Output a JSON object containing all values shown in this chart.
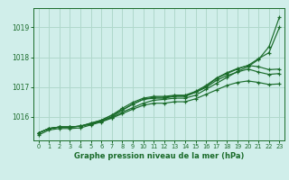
{
  "bg_color": "#d0eeea",
  "grid_color": "#b0d8cc",
  "line_color": "#1a6b2a",
  "title": "Graphe pression niveau de la mer (hPa)",
  "xlim": [
    -0.5,
    23.5
  ],
  "ylim": [
    1015.2,
    1019.65
  ],
  "yticks": [
    1016,
    1017,
    1018,
    1019
  ],
  "xticks": [
    0,
    1,
    2,
    3,
    4,
    5,
    6,
    7,
    8,
    9,
    10,
    11,
    12,
    13,
    14,
    15,
    16,
    17,
    18,
    19,
    20,
    21,
    22,
    23
  ],
  "series": [
    [
      1015.45,
      1015.6,
      1015.65,
      1015.65,
      1015.68,
      1015.75,
      1015.85,
      1015.97,
      1016.15,
      1016.3,
      1016.45,
      1016.55,
      1016.58,
      1016.62,
      1016.62,
      1016.72,
      1016.92,
      1017.12,
      1017.32,
      1017.52,
      1017.68,
      1017.92,
      1018.35,
      1019.35
    ],
    [
      1015.45,
      1015.6,
      1015.65,
      1015.65,
      1015.68,
      1015.75,
      1015.85,
      1016.0,
      1016.22,
      1016.42,
      1016.58,
      1016.65,
      1016.65,
      1016.7,
      1016.7,
      1016.82,
      1017.02,
      1017.28,
      1017.45,
      1017.6,
      1017.72,
      1017.95,
      1018.15,
      1019.0
    ],
    [
      1015.45,
      1015.6,
      1015.65,
      1015.65,
      1015.68,
      1015.78,
      1015.88,
      1016.05,
      1016.28,
      1016.48,
      1016.62,
      1016.68,
      1016.68,
      1016.72,
      1016.72,
      1016.85,
      1017.05,
      1017.3,
      1017.48,
      1017.62,
      1017.72,
      1017.68,
      1017.58,
      1017.6
    ],
    [
      1015.45,
      1015.6,
      1015.65,
      1015.65,
      1015.68,
      1015.78,
      1015.88,
      1016.05,
      1016.22,
      1016.42,
      1016.58,
      1016.62,
      1016.62,
      1016.68,
      1016.68,
      1016.82,
      1016.98,
      1017.22,
      1017.38,
      1017.5,
      1017.6,
      1017.5,
      1017.42,
      1017.45
    ],
    [
      1015.38,
      1015.55,
      1015.6,
      1015.6,
      1015.62,
      1015.72,
      1015.82,
      1015.95,
      1016.1,
      1016.25,
      1016.38,
      1016.45,
      1016.45,
      1016.5,
      1016.5,
      1016.6,
      1016.75,
      1016.9,
      1017.05,
      1017.15,
      1017.2,
      1017.15,
      1017.08,
      1017.1
    ]
  ]
}
